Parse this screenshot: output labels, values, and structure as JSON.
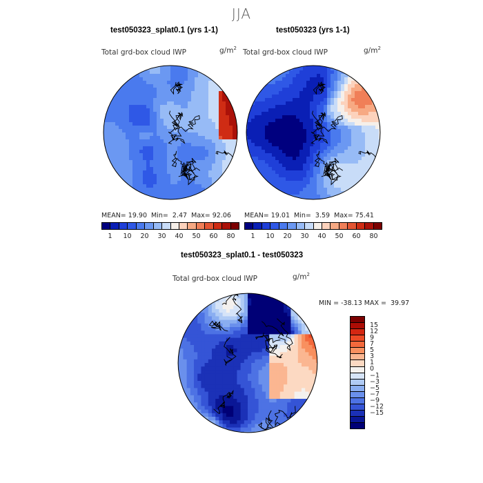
{
  "season": "JJA",
  "variable": "Total grd-box cloud IWP",
  "unit": "g/m",
  "unit_sup": "2",
  "panels": [
    {
      "title": "test050323_splat0.1 (yrs 1-1)",
      "mean": "19.90",
      "min": "2.47",
      "max": "92.06"
    },
    {
      "title": "test050323 (yrs 1-1)",
      "mean": "19.01",
      "min": "3.59",
      "max": "75.41"
    }
  ],
  "diff": {
    "title": "test050323_splat0.1 - test050323",
    "min": "-38.13",
    "max": "39.97"
  },
  "labels": {
    "mean": "MEAN=",
    "min": "Min=",
    "max": "Max=",
    "min_caps": "MIN =",
    "max_caps": "MAX ="
  },
  "abs_colorbar": {
    "colors": [
      "#00007f",
      "#0a1fb5",
      "#1f3fd8",
      "#2f58e6",
      "#4a7aee",
      "#6b98f2",
      "#97bbf6",
      "#c8dcf8",
      "#f6efe9",
      "#fcd2bc",
      "#f7a983",
      "#f07f58",
      "#e45533",
      "#cf2c14",
      "#ab1109",
      "#7c0000"
    ],
    "ticks": [
      "1",
      "10",
      "20",
      "30",
      "40",
      "50",
      "60",
      "80"
    ]
  },
  "diff_colorbar": {
    "colors": [
      "#7c0000",
      "#ac0c05",
      "#d42712",
      "#ec4a25",
      "#f3693c",
      "#f8905f",
      "#fbb691",
      "#fcd9c2",
      "#f4f1ee",
      "#d6e4f8",
      "#b0cbf5",
      "#8aaef1",
      "#6a90ec",
      "#4d72e4",
      "#3554d6",
      "#1b31b7",
      "#0a1796",
      "#000076"
    ],
    "ticks": [
      "15",
      "12",
      "9",
      "7",
      "5",
      "3",
      "1",
      "0",
      "−1",
      "−3",
      "−5",
      "−7",
      "−9",
      "−12",
      "−15"
    ]
  },
  "chart_data": [
    {
      "type": "heatmap",
      "title": "test050323_splat0.1 (yrs 1-1)",
      "subtitle": "Total grd-box cloud IWP",
      "units": "g/m2",
      "projection": "north polar stereographic",
      "colorbar_levels": [
        1,
        10,
        20,
        30,
        40,
        50,
        60,
        80
      ],
      "mean": 19.9,
      "min": 2.47,
      "max": 92.06
    },
    {
      "type": "heatmap",
      "title": "test050323 (yrs 1-1)",
      "subtitle": "Total grd-box cloud IWP",
      "units": "g/m2",
      "projection": "north polar stereographic",
      "colorbar_levels": [
        1,
        10,
        20,
        30,
        40,
        50,
        60,
        80
      ],
      "mean": 19.01,
      "min": 3.59,
      "max": 75.41
    },
    {
      "type": "heatmap",
      "title": "test050323_splat0.1 - test050323",
      "subtitle": "Total grd-box cloud IWP",
      "units": "g/m2",
      "projection": "north polar stereographic",
      "colorbar_levels": [
        15,
        12,
        9,
        7,
        5,
        3,
        1,
        0,
        -1,
        -3,
        -5,
        -7,
        -9,
        -12,
        -15
      ],
      "min": -38.13,
      "max": 39.97
    }
  ]
}
